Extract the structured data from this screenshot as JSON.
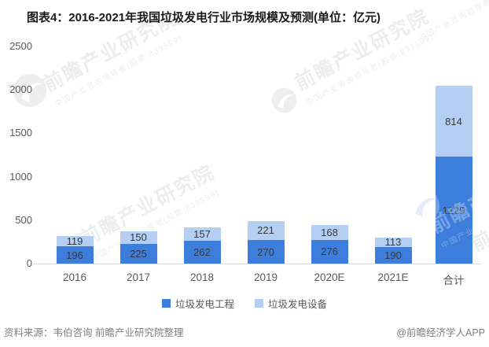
{
  "chart_data": {
    "type": "bar",
    "stacked": true,
    "title": "图表4：2016-2021年我国垃圾发电行业市场规模及预测(单位：亿元)",
    "categories": [
      "2016",
      "2017",
      "2018",
      "2019",
      "2020E",
      "2021E",
      "合计"
    ],
    "series": [
      {
        "name": "垃圾发电工程",
        "color": "#3D7EDC",
        "values": [
          196,
          225,
          262,
          270,
          276,
          190,
          1229
        ]
      },
      {
        "name": "垃圾发电设备",
        "color": "#B4CFF1",
        "values": [
          119,
          150,
          157,
          221,
          168,
          113,
          814
        ]
      }
    ],
    "ylim": [
      0,
      2500
    ],
    "yticks": [
      0,
      500,
      1000,
      1500,
      2000,
      2500
    ],
    "grid": false,
    "legend_position": "bottom",
    "value_labels": true
  },
  "footer": {
    "source": "资料来源：韦伯咨询 前瞻产业研究院整理",
    "credit": "@前瞻经济学人APP"
  },
  "watermark": {
    "brand": "前瞻产业研究院",
    "tagline": "中国产业咨询领导者(股票:839599)"
  }
}
